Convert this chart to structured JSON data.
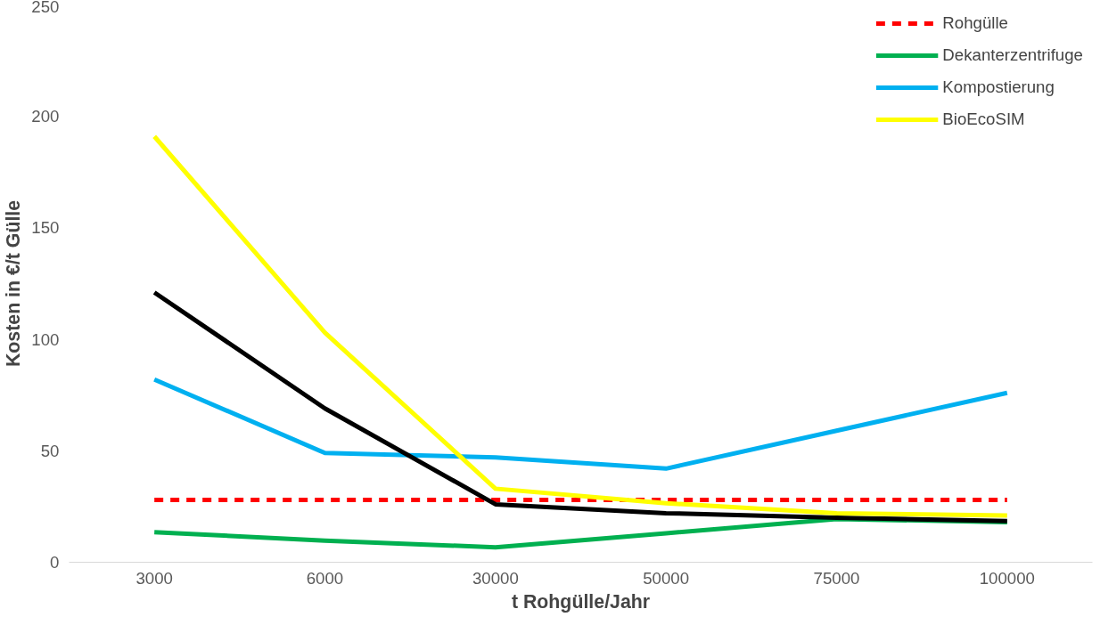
{
  "chart_data": {
    "type": "line",
    "xlabel": "t Rohgülle/Jahr",
    "ylabel": "Kosten in €/t Gülle",
    "categories": [
      "3000",
      "6000",
      "30000",
      "50000",
      "75000",
      "100000"
    ],
    "ylim": [
      0,
      250
    ],
    "yticks": [
      0,
      50,
      100,
      150,
      200,
      250
    ],
    "legend": "top right",
    "series": [
      {
        "name": "Rohgülle",
        "color": "#ff0000",
        "line_style": "dashed",
        "values": [
          28,
          28,
          28,
          28,
          28,
          28
        ]
      },
      {
        "name": "Dekanterzentrifuge",
        "color": "#00b050",
        "values": [
          13.5,
          9.7,
          6.7,
          13,
          19.4,
          18
        ]
      },
      {
        "name": "Kompostierung",
        "color": "#00b0f0",
        "values": [
          82,
          49,
          47,
          42,
          59,
          76
        ]
      },
      {
        "color": "#000000",
        "values": [
          121,
          69,
          26,
          22,
          20,
          18.5
        ]
      },
      {
        "name": "BioEcoSIM",
        "color": "#ffff00",
        "values": [
          191,
          103,
          33,
          26.5,
          22,
          21
        ]
      }
    ]
  }
}
